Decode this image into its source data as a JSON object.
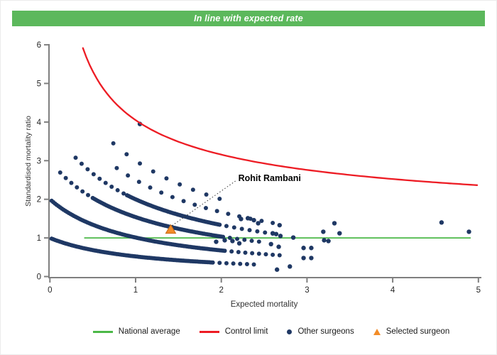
{
  "banner": {
    "text": "In line with expected rate",
    "bg": "#5cb85c",
    "fg": "#ffffff"
  },
  "chart_data": {
    "type": "scatter",
    "title": "",
    "xlabel": "Expected mortality",
    "ylabel": "Standardised mortality ratio",
    "xlim": [
      0,
      5
    ],
    "ylim": [
      0,
      6
    ],
    "xticks": [
      0,
      1,
      2,
      3,
      4,
      5
    ],
    "yticks": [
      0,
      1,
      2,
      3,
      4,
      5,
      6
    ],
    "grid": false,
    "axis_color": "#7f7f7f",
    "tick_label_color": "#262626",
    "national_average": {
      "y": 1,
      "x_start": 0.4,
      "x_end": 4.91,
      "color": "#4cb848"
    },
    "control_limit": {
      "model": "y = 1 + 3.05/sqrt(x)",
      "base": 1,
      "k": 3.05,
      "x_start": 0.385,
      "x_end": 5.0,
      "color": "#ed1c24",
      "y_at_x1": 4.05,
      "y_at_x5": 2.36
    },
    "other_surgeons": {
      "color": "#1f3864",
      "arc_model": "y = a / (1 + b*x)",
      "arcs": [
        {
          "a": 1.0,
          "b": 0.92,
          "segments": [
            [
              0.02,
              1.9,
              0.02
            ],
            [
              1.98,
              2.38,
              0.08
            ]
          ]
        },
        {
          "a": 2.0,
          "b": 0.98,
          "segments": [
            [
              0.02,
              2.05,
              0.02
            ],
            [
              2.12,
              2.68,
              0.08
            ]
          ]
        },
        {
          "a": 3.0,
          "b": 0.95,
          "segments": [
            [
              0.12,
              0.48,
              0.065
            ],
            [
              0.5,
              2.02,
              0.02
            ],
            [
              2.1,
              2.5,
              0.085
            ]
          ]
        },
        {
          "a": 4.0,
          "b": 1.0,
          "segments": [
            [
              0.3,
              0.86,
              0.07
            ],
            [
              0.9,
              1.98,
              0.02
            ],
            [
              2.06,
              2.66,
              0.09
            ]
          ]
        },
        {
          "a": 5.0,
          "b": 1.0,
          "segments": [
            [
              0.78,
              2.7,
              0.13
            ]
          ]
        },
        {
          "a": 6.0,
          "b": 1.0,
          "segments": [
            [
              0.74,
              2.13,
              0.155
            ]
          ]
        }
      ],
      "scatter": [
        [
          1.05,
          3.95
        ],
        [
          1.94,
          0.9
        ],
        [
          2.04,
          0.94
        ],
        [
          2.13,
          0.92
        ],
        [
          2.21,
          0.86
        ],
        [
          2.23,
          1.49
        ],
        [
          2.31,
          1.51
        ],
        [
          2.38,
          1.46
        ],
        [
          2.43,
          1.38
        ],
        [
          2.58,
          0.84
        ],
        [
          2.67,
          0.77
        ],
        [
          2.96,
          0.74
        ],
        [
          3.05,
          0.74
        ],
        [
          2.96,
          0.48
        ],
        [
          3.05,
          0.48
        ],
        [
          2.8,
          0.26
        ],
        [
          2.65,
          0.18
        ],
        [
          2.68,
          1.33
        ],
        [
          2.6,
          1.12
        ],
        [
          2.64,
          1.1
        ],
        [
          2.69,
          1.05
        ],
        [
          2.84,
          1.01
        ],
        [
          3.19,
          1.16
        ],
        [
          3.32,
          1.38
        ],
        [
          3.38,
          1.12
        ],
        [
          3.2,
          0.94
        ],
        [
          3.25,
          0.92
        ],
        [
          4.57,
          1.4
        ],
        [
          4.89,
          1.16
        ]
      ]
    },
    "selected_surgeon": {
      "x": 1.41,
      "y": 1.21,
      "color": "#f28c28",
      "edge_color": "#c96a10",
      "label": "Rohit Rambani",
      "label_anchor_x": 2.19,
      "label_anchor_y": 2.62
    }
  },
  "legend": {
    "items": [
      {
        "label": "National average",
        "swatch": "line",
        "color": "#4cb848"
      },
      {
        "label": "Control limit",
        "swatch": "line",
        "color": "#ed1c24"
      },
      {
        "label": "Other surgeons",
        "swatch": "dot",
        "color": "#1f3864"
      },
      {
        "label": "Selected surgeon",
        "swatch": "triangle",
        "color": "#f28c28"
      }
    ]
  }
}
